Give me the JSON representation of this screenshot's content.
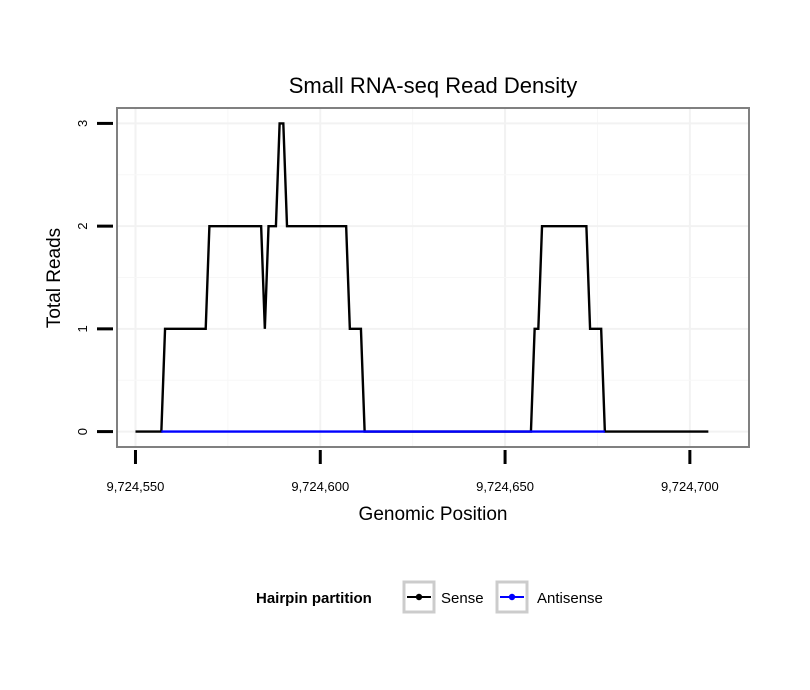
{
  "chart_data": {
    "type": "line",
    "title": "Small RNA-seq Read Density",
    "xlabel": "Genomic Position",
    "ylabel": "Total Reads",
    "xlim": [
      9724545,
      9724716
    ],
    "ylim": [
      -0.15,
      3.15
    ],
    "x_ticks": [
      9724550,
      9724600,
      9724650,
      9724700
    ],
    "x_tick_labels": [
      "9,724,550",
      "9,724,600",
      "9,724,650",
      "9,724,700"
    ],
    "y_ticks": [
      0,
      1,
      2,
      3
    ],
    "y_tick_labels": [
      "0",
      "1",
      "2",
      "3"
    ],
    "grid": true,
    "legend": {
      "title": "Hairpin partition",
      "position": "bottom",
      "entries": [
        {
          "name": "Sense",
          "color": "#000000"
        },
        {
          "name": "Antisense",
          "color": "#0000ff"
        }
      ]
    },
    "series": [
      {
        "name": "Sense",
        "color": "#000000",
        "x": [
          9724550,
          9724557,
          9724558,
          9724569,
          9724570,
          9724584,
          9724585,
          9724586,
          9724588,
          9724589,
          9724590,
          9724591,
          9724607,
          9724608,
          9724611,
          9724612,
          9724657,
          9724658,
          9724659,
          9724660,
          9724672,
          9724673,
          9724676,
          9724677,
          9724705
        ],
        "y": [
          0,
          0,
          1,
          1,
          2,
          2,
          1,
          2,
          2,
          3,
          3,
          2,
          2,
          1,
          1,
          0,
          0,
          1,
          1,
          2,
          2,
          1,
          1,
          0,
          0
        ]
      },
      {
        "name": "Antisense",
        "color": "#0000ff",
        "x": [
          9724557,
          9724612,
          9724657,
          9724677
        ],
        "y": [
          0,
          0,
          0,
          0
        ]
      }
    ]
  }
}
